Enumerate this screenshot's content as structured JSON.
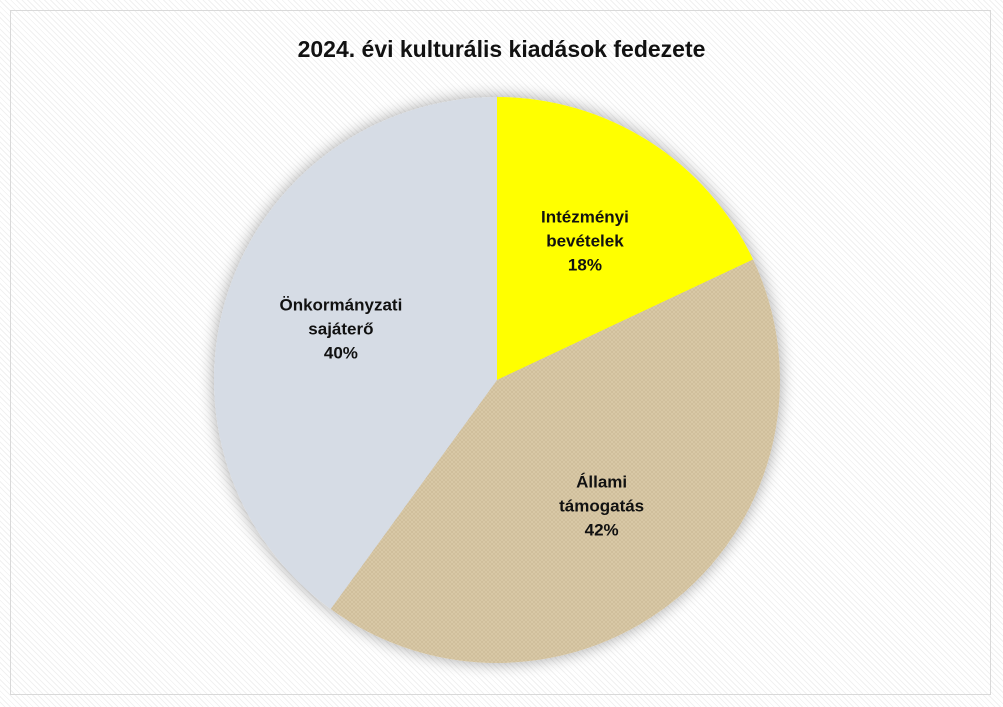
{
  "chart_data": {
    "type": "pie",
    "title": "2024. évi kulturális kiadások fedezete",
    "categories": [
      "Intézményi bevételek",
      "Állami támogatás",
      "Önkormányzati sajáterő"
    ],
    "values": [
      18,
      42,
      40
    ],
    "value_labels": [
      "18%",
      "42%",
      "40%"
    ],
    "colors": [
      "#ffff00",
      "#d8c8a6",
      "#d6dce5"
    ]
  }
}
